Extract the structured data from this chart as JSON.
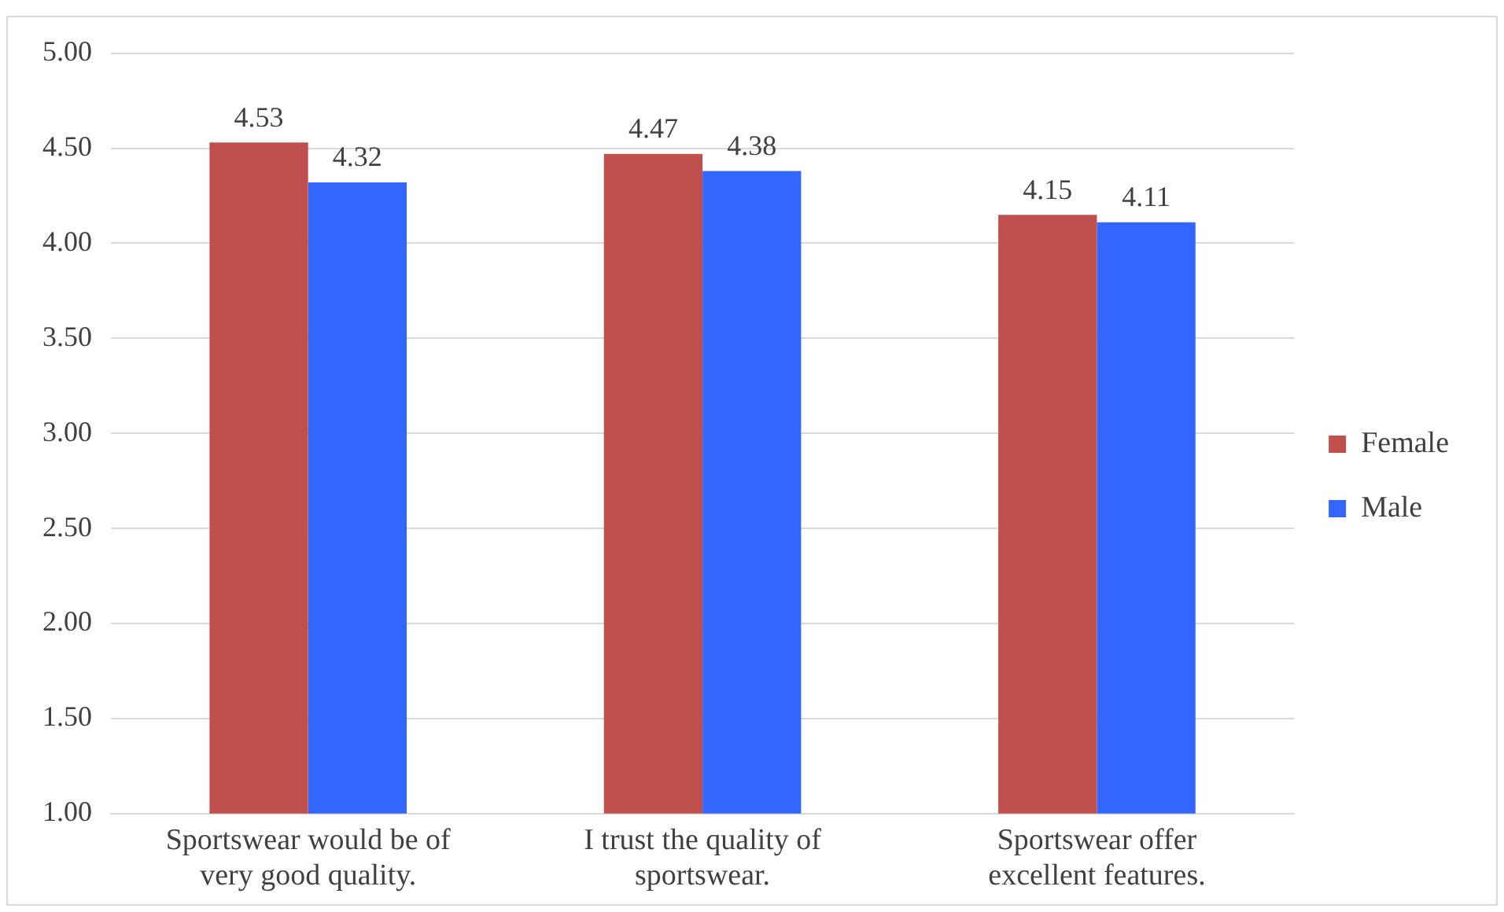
{
  "chart_data": {
    "type": "bar",
    "categories": [
      "Sportswear would be of very good quality.",
      "I trust the quality of sportswear.",
      "Sportswear offer excellent features."
    ],
    "series": [
      {
        "name": "Female",
        "color": "#c0504d",
        "values": [
          4.53,
          4.47,
          4.15
        ]
      },
      {
        "name": "Male",
        "color": "#3366ff",
        "values": [
          4.32,
          4.38,
          4.11
        ]
      }
    ],
    "ylim": [
      1,
      5
    ],
    "yticks": [
      {
        "value": 1,
        "label": "1.00"
      },
      {
        "value": 1.5,
        "label": "1.50"
      },
      {
        "value": 2,
        "label": "2.00"
      },
      {
        "value": 2.5,
        "label": "2.50"
      },
      {
        "value": 3,
        "label": "3.00"
      },
      {
        "value": 3.5,
        "label": "3.50"
      },
      {
        "value": 4,
        "label": "4.00"
      },
      {
        "value": 4.5,
        "label": "4.50"
      },
      {
        "value": 5,
        "label": "5.00"
      }
    ],
    "grid": "y",
    "legend": "right",
    "data_labels": true
  }
}
